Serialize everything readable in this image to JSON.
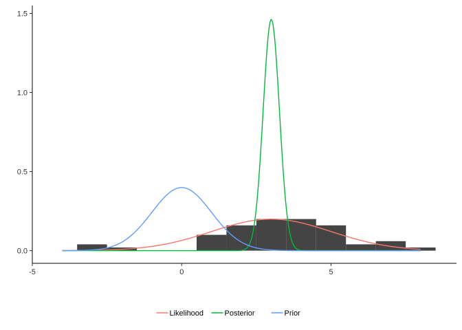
{
  "chart_data": {
    "type": "line",
    "title": "",
    "xlabel": "",
    "ylabel": "",
    "xlim": [
      -5,
      9.2
    ],
    "ylim": [
      -0.08,
      1.55
    ],
    "grid": false,
    "legend_position": "bottom",
    "x_ticks": [
      {
        "value": -5,
        "label": "-5"
      },
      {
        "value": 0,
        "label": "0"
      },
      {
        "value": 5,
        "label": "5"
      }
    ],
    "y_ticks": [
      {
        "value": 0,
        "label": "0.0"
      },
      {
        "value": 0.5,
        "label": "0.5"
      },
      {
        "value": 1,
        "label": "1.0"
      },
      {
        "value": 1.5,
        "label": "1.5"
      }
    ],
    "histogram": {
      "fill": "#444444",
      "bins": [
        {
          "x0": -3.5,
          "x1": -2.5,
          "density": 0.04
        },
        {
          "x0": -2.5,
          "x1": -1.5,
          "density": 0.02
        },
        {
          "x0": -1.5,
          "x1": -0.5,
          "density": 0.0
        },
        {
          "x0": -0.5,
          "x1": 0.5,
          "density": 0.0
        },
        {
          "x0": 0.5,
          "x1": 1.5,
          "density": 0.1
        },
        {
          "x0": 1.5,
          "x1": 2.5,
          "density": 0.16
        },
        {
          "x0": 2.5,
          "x1": 3.5,
          "density": 0.2
        },
        {
          "x0": 3.5,
          "x1": 4.5,
          "density": 0.2
        },
        {
          "x0": 4.5,
          "x1": 5.5,
          "density": 0.16
        },
        {
          "x0": 5.5,
          "x1": 6.5,
          "density": 0.04
        },
        {
          "x0": 6.5,
          "x1": 7.5,
          "density": 0.06
        },
        {
          "x0": 7.5,
          "x1": 8.5,
          "density": 0.02
        }
      ]
    },
    "series": [
      {
        "name": "Likelihood",
        "color": "#F8766D",
        "distribution": "normal",
        "mean": 3.0,
        "sd": 2.0,
        "x_range": [
          -4,
          8
        ]
      },
      {
        "name": "Posterior",
        "color": "#00BA38",
        "distribution": "normal",
        "mean": 3.0,
        "sd": 0.273,
        "x_range": [
          -4,
          8
        ]
      },
      {
        "name": "Prior",
        "color": "#619CFF",
        "distribution": "normal",
        "mean": 0.0,
        "sd": 1.0,
        "x_range": [
          -4,
          8
        ]
      }
    ]
  }
}
